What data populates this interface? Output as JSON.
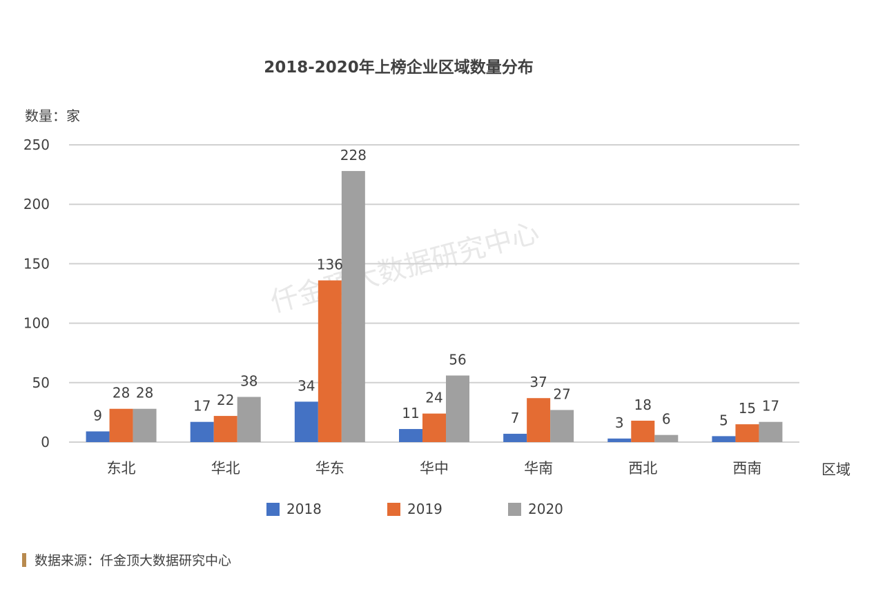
{
  "chart_data": {
    "type": "bar",
    "title": "2018-2020年上榜企业区域数量分布",
    "ylabel": "数量：家",
    "xlabel": "区域",
    "categories": [
      "东北",
      "华北",
      "华东",
      "华中",
      "华南",
      "西北",
      "西南"
    ],
    "series": [
      {
        "name": "2018",
        "color": "#4472c4",
        "values": [
          9,
          17,
          34,
          11,
          7,
          3,
          5
        ]
      },
      {
        "name": "2019",
        "color": "#e46c33",
        "values": [
          28,
          22,
          136,
          24,
          37,
          18,
          15
        ]
      },
      {
        "name": "2020",
        "color": "#a0a0a0",
        "values": [
          28,
          38,
          228,
          56,
          27,
          6,
          17
        ]
      }
    ],
    "ylim": [
      0,
      250
    ],
    "yticks": [
      0,
      50,
      100,
      150,
      200,
      250
    ],
    "grid": true,
    "legend_position": "bottom"
  },
  "watermark": "仟金顶大数据研究中心",
  "source": "数据来源：仟金顶大数据研究中心"
}
